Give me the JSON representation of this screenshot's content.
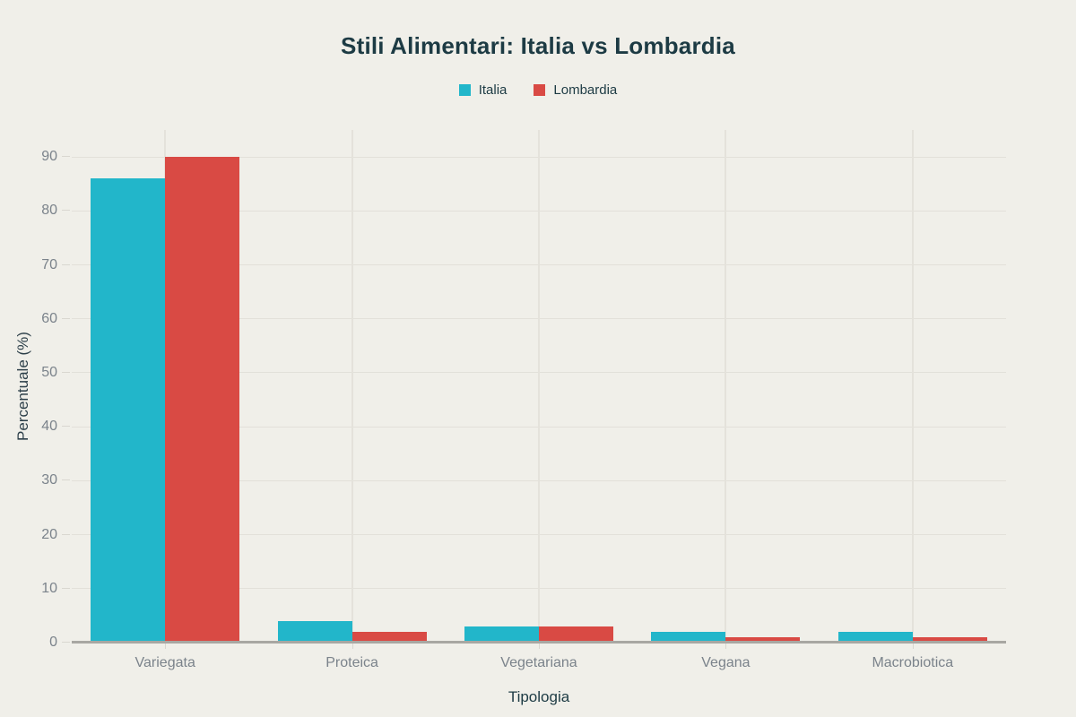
{
  "chart_data": {
    "type": "bar",
    "title": "Stili Alimentari: Italia vs Lombardia",
    "categories": [
      "Variegata",
      "Proteica",
      "Vegetariana",
      "Vegana",
      "Macrobiotica"
    ],
    "series": [
      {
        "name": "Italia",
        "color": "#22b6ca",
        "values": [
          86,
          4,
          3,
          2,
          2
        ]
      },
      {
        "name": "Lombardia",
        "color": "#d94a44",
        "values": [
          90,
          2,
          3,
          1,
          1
        ]
      }
    ],
    "xlabel": "Tipologia",
    "ylabel": "Percentuale (%)",
    "ylim": [
      0,
      95
    ],
    "yticks": [
      0,
      10,
      20,
      30,
      40,
      50,
      60,
      70,
      80,
      90
    ],
    "grid": true,
    "legend_position": "top-center"
  },
  "colors": {
    "background": "#f0efe9",
    "gridline": "#e2e0d9",
    "axis_line": "#a8a7a2",
    "tick_text": "#7b838b",
    "title_text": "#1d3b44"
  }
}
